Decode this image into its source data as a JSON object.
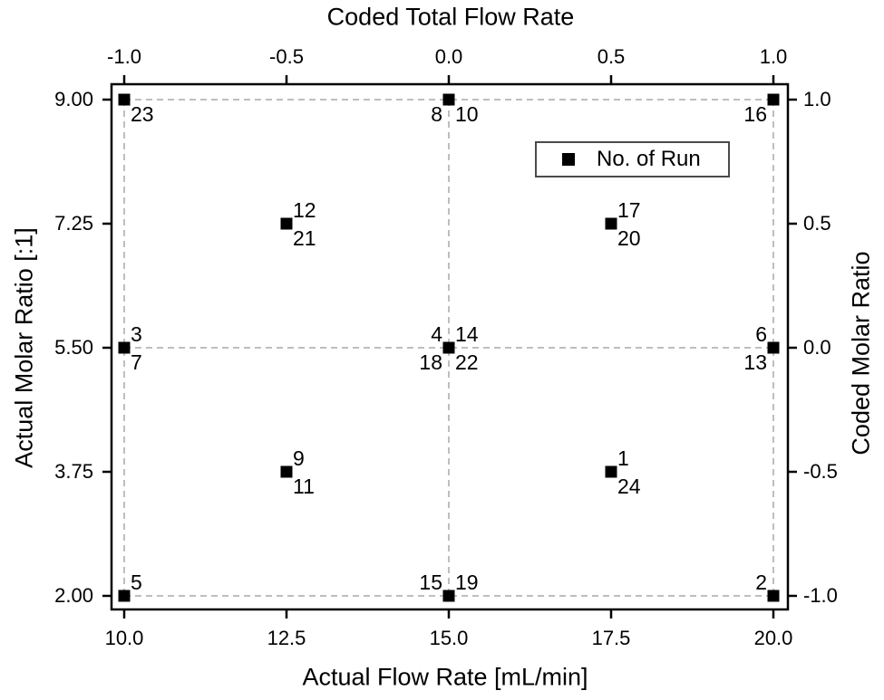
{
  "chart_data": {
    "type": "scatter",
    "title_top_axis": "Coded Total Flow Rate",
    "xlabel_bottom": "Actual Flow Rate [mL/min]",
    "ylabel_left": "Actual Molar Ratio [:1]",
    "ylabel_right": "Coded Molar Ratio",
    "legend": {
      "marker": "filled-square",
      "label": "No. of Run",
      "position": "upper-right-inside"
    },
    "axes": {
      "bottom": {
        "ticks": [
          "10.0",
          "12.5",
          "15.0",
          "17.5",
          "20.0"
        ],
        "range": [
          10,
          20
        ]
      },
      "top": {
        "ticks": [
          "-1.0",
          "-0.5",
          "0.0",
          "0.5",
          "1.0"
        ],
        "range": [
          -1,
          1
        ]
      },
      "left": {
        "ticks": [
          "9.00",
          "7.25",
          "5.50",
          "3.75",
          "2.00"
        ],
        "range": [
          2,
          9
        ]
      },
      "right": {
        "ticks": [
          "1.0",
          "0.5",
          "0.0",
          "-0.5",
          "-1.0"
        ],
        "range": [
          -1,
          1
        ]
      }
    },
    "grid": {
      "style": "dashed",
      "x_actual": [
        10,
        15,
        20
      ],
      "y_actual": [
        2,
        5.5,
        9
      ]
    },
    "points": [
      {
        "x": 10,
        "y": 9,
        "runs": [
          {
            "n": "23",
            "pos": "br"
          }
        ]
      },
      {
        "x": 15,
        "y": 9,
        "runs": [
          {
            "n": "8",
            "pos": "bl"
          },
          {
            "n": "10",
            "pos": "br"
          }
        ]
      },
      {
        "x": 20,
        "y": 9,
        "runs": [
          {
            "n": "16",
            "pos": "bl"
          }
        ]
      },
      {
        "x": 12.5,
        "y": 7.25,
        "runs": [
          {
            "n": "12",
            "pos": "tr"
          },
          {
            "n": "21",
            "pos": "br"
          }
        ]
      },
      {
        "x": 17.5,
        "y": 7.25,
        "runs": [
          {
            "n": "17",
            "pos": "tr"
          },
          {
            "n": "20",
            "pos": "br"
          }
        ]
      },
      {
        "x": 10,
        "y": 5.5,
        "runs": [
          {
            "n": "3",
            "pos": "tr"
          },
          {
            "n": "7",
            "pos": "br"
          }
        ]
      },
      {
        "x": 15,
        "y": 5.5,
        "runs": [
          {
            "n": "4",
            "pos": "tl"
          },
          {
            "n": "14",
            "pos": "tr"
          },
          {
            "n": "18",
            "pos": "bl"
          },
          {
            "n": "22",
            "pos": "br"
          }
        ]
      },
      {
        "x": 20,
        "y": 5.5,
        "runs": [
          {
            "n": "6",
            "pos": "tl"
          },
          {
            "n": "13",
            "pos": "bl"
          }
        ]
      },
      {
        "x": 12.5,
        "y": 3.75,
        "runs": [
          {
            "n": "9",
            "pos": "tr"
          },
          {
            "n": "11",
            "pos": "br"
          }
        ]
      },
      {
        "x": 17.5,
        "y": 3.75,
        "runs": [
          {
            "n": "1",
            "pos": "tr"
          },
          {
            "n": "24",
            "pos": "br"
          }
        ]
      },
      {
        "x": 10,
        "y": 2,
        "runs": [
          {
            "n": "5",
            "pos": "tr"
          }
        ]
      },
      {
        "x": 15,
        "y": 2,
        "runs": [
          {
            "n": "15",
            "pos": "tl"
          },
          {
            "n": "19",
            "pos": "tr"
          }
        ]
      },
      {
        "x": 20,
        "y": 2,
        "runs": [
          {
            "n": "2",
            "pos": "tl"
          }
        ]
      }
    ],
    "colors": {
      "marker": "#000000",
      "frame": "#000000",
      "grid": "#a8a8a8",
      "text": "#000000",
      "legend_border": "#4a4a4a",
      "background": "#ffffff"
    }
  }
}
